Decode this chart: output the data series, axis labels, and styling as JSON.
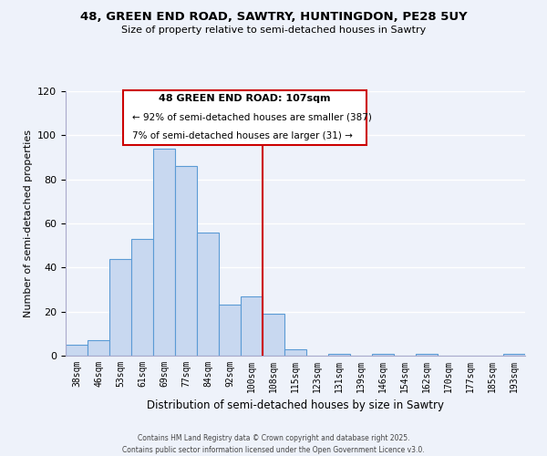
{
  "title": "48, GREEN END ROAD, SAWTRY, HUNTINGDON, PE28 5UY",
  "subtitle": "Size of property relative to semi-detached houses in Sawtry",
  "xlabel": "Distribution of semi-detached houses by size in Sawtry",
  "ylabel": "Number of semi-detached properties",
  "bar_labels": [
    "38sqm",
    "46sqm",
    "53sqm",
    "61sqm",
    "69sqm",
    "77sqm",
    "84sqm",
    "92sqm",
    "100sqm",
    "108sqm",
    "115sqm",
    "123sqm",
    "131sqm",
    "139sqm",
    "146sqm",
    "154sqm",
    "162sqm",
    "170sqm",
    "177sqm",
    "185sqm",
    "193sqm"
  ],
  "bar_values": [
    5,
    7,
    44,
    53,
    94,
    86,
    56,
    23,
    27,
    19,
    3,
    0,
    1,
    0,
    1,
    0,
    1,
    0,
    0,
    0,
    1
  ],
  "bar_color": "#c8d8f0",
  "bar_edge_color": "#5b9bd5",
  "vline_bin": 9,
  "vline_color": "#cc0000",
  "annotation_title": "48 GREEN END ROAD: 107sqm",
  "annotation_line1": "← 92% of semi-detached houses are smaller (387)",
  "annotation_line2": "7% of semi-detached houses are larger (31) →",
  "ylim": [
    0,
    120
  ],
  "footer_line1": "Contains HM Land Registry data © Crown copyright and database right 2025.",
  "footer_line2": "Contains public sector information licensed under the Open Government Licence v3.0.",
  "bg_color": "#eef2fa",
  "grid_color": "#ffffff",
  "annotation_box_color": "#ffffff",
  "annotation_box_edge": "#cc0000"
}
